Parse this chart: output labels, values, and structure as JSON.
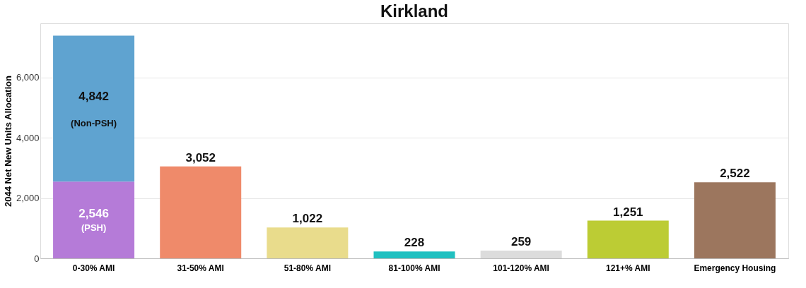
{
  "chart_data": {
    "type": "bar",
    "title": "Kirkland",
    "ylabel": "2044 Net New Units Allocation",
    "categories": [
      "0-30% AMI",
      "31-50% AMI",
      "51-80% AMI",
      "81-100% AMI",
      "101-120% AMI",
      "121+% AMI",
      "Emergency Housing"
    ],
    "series": [
      {
        "values": [
          2546,
          3052,
          1022,
          228,
          259,
          1251,
          2522
        ],
        "colors": [
          "#b57bd8",
          "#ef8a6a",
          "#e9dc8c",
          "#20c0c0",
          "#dcdcdc",
          "#bccc34",
          "#9c765e"
        ],
        "value_labels": [
          "2,546",
          "3,052",
          "1,022",
          "228",
          "259",
          "1,251",
          "2,522"
        ]
      },
      {
        "values": [
          4842,
          null,
          null,
          null,
          null,
          null,
          null
        ],
        "color": "#5fa3d0",
        "value_labels": [
          "4,842",
          null,
          null,
          null,
          null,
          null,
          null
        ]
      }
    ],
    "stacked": true,
    "annotations": [
      "(PSH)",
      "(Non-PSH)"
    ],
    "ylim": [
      0,
      7800
    ],
    "yticks": [
      0,
      {
        "value": 2000,
        "label": "2,000"
      },
      {
        "value": 4000,
        "label": "4,000"
      },
      {
        "value": 6000,
        "label": "6,000"
      }
    ],
    "grid": "y"
  }
}
